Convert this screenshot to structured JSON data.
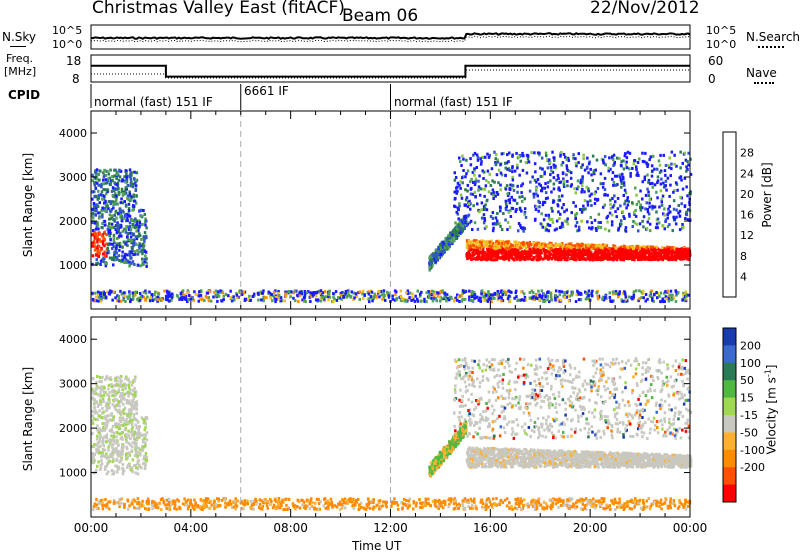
{
  "header": {
    "radar": "Christmas Valley East (fitACF)",
    "beam": "Beam 06",
    "date": "22/Nov/2012"
  },
  "noise_panel": {
    "left_label": "N.Sky",
    "right_label": "N.Search",
    "right_ticks": [
      "10^5",
      "10^0"
    ],
    "left_ticks": [
      "10^5",
      "10^0"
    ]
  },
  "freq_panel": {
    "left_label_1": "Freq.",
    "left_label_2": "[MHz]",
    "left_ticks": [
      "18",
      "8"
    ],
    "right_ticks": [
      "60",
      "0"
    ],
    "right_label": "Nave"
  },
  "cpid_panel": {
    "label": "CPID",
    "segments": [
      {
        "label": "normal (fast) 151 IF",
        "start": 0,
        "end": 6
      },
      {
        "label": "6661 IF",
        "start": 6,
        "end": 12
      },
      {
        "label": "normal (fast) 151 IF",
        "start": 12,
        "end": 24
      }
    ]
  },
  "x_axis": {
    "label": "Time UT",
    "ticks": [
      "00:00",
      "04:00",
      "08:00",
      "12:00",
      "16:00",
      "20:00",
      "00:00"
    ]
  },
  "power_panel": {
    "ylabel": "Slant Range [km]",
    "yticks": [
      "1000",
      "2000",
      "3000",
      "4000"
    ],
    "colorbar_label": "Power [dB]",
    "colorbar_ticks": [
      "4",
      "8",
      "12",
      "16",
      "20",
      "24",
      "28"
    ],
    "colors": [
      "#1a1aff",
      "#3355cc",
      "#2a7a55",
      "#4fa05a",
      "#88c840",
      "#f0c020",
      "#ff8c00",
      "#ff5000",
      "#ff0000"
    ]
  },
  "velocity_panel": {
    "ylabel": "Slant Range [km]",
    "yticks": [
      "1000",
      "2000",
      "3000",
      "4000"
    ],
    "colorbar_label": "Velocity [m s",
    "colorbar_label_sup": "-1",
    "colorbar_label_end": "]",
    "colorbar_ticks": [
      "200",
      "100",
      "50",
      "15",
      "-15",
      "-50",
      "-100",
      "-200"
    ],
    "colors": [
      "#1a3ab0",
      "#3a6ad0",
      "#2a7a55",
      "#50b840",
      "#a0d850",
      "#c8c8c0",
      "#ffb030",
      "#ff8c00",
      "#ff5000",
      "#ff0000"
    ]
  },
  "chart_data": [
    {
      "type": "line",
      "title": "Christmas Valley East (fitACF) Beam 06",
      "ylabel": "N.Sky",
      "scale": "log",
      "x_range": [
        0,
        24
      ]
    },
    {
      "type": "line",
      "ylabel": "Freq. [MHz]",
      "x": [
        0,
        3,
        3,
        15,
        15,
        24
      ],
      "freq": [
        14,
        14,
        10,
        10,
        14,
        14
      ],
      "ylim": [
        8,
        18
      ]
    },
    {
      "type": "heatmap",
      "ylabel": "Slant Range [km]",
      "xlabel": "Time UT",
      "ylim": [
        0,
        4500
      ],
      "x_range": [
        0,
        24
      ],
      "colorbar": "Power [dB]",
      "colorbar_range": [
        0,
        32
      ]
    },
    {
      "type": "heatmap",
      "ylabel": "Slant Range [km]",
      "xlabel": "Time UT",
      "ylim": [
        0,
        4500
      ],
      "x_range": [
        0,
        24
      ],
      "colorbar": "Velocity [m s-1]",
      "colorbar_range": [
        -200,
        200
      ]
    }
  ]
}
